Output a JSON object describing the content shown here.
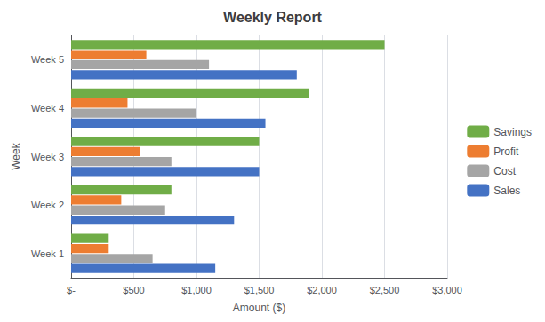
{
  "chart_data": {
    "type": "bar",
    "orientation": "horizontal",
    "title": "Weekly Report",
    "xlabel": "Amount ($)",
    "ylabel": "Week",
    "categories": [
      "Week 1",
      "Week 2",
      "Week 3",
      "Week 4",
      "Week 5"
    ],
    "series": [
      {
        "name": "Savings",
        "color": "#70AD47",
        "values": [
          300,
          800,
          1500,
          1900,
          2500
        ]
      },
      {
        "name": "Profit",
        "color": "#ED7D31",
        "values": [
          300,
          400,
          550,
          450,
          600
        ]
      },
      {
        "name": "Cost",
        "color": "#A5A5A5",
        "values": [
          650,
          750,
          800,
          1000,
          1100
        ]
      },
      {
        "name": "Sales",
        "color": "#4472C4",
        "values": [
          1150,
          1300,
          1500,
          1550,
          1800
        ]
      }
    ],
    "xlim": [
      0,
      3000
    ],
    "xticks": [
      {
        "value": 0,
        "label": "$-"
      },
      {
        "value": 500,
        "label": "$500"
      },
      {
        "value": 1000,
        "label": "$1,000"
      },
      {
        "value": 1500,
        "label": "$1,500"
      },
      {
        "value": 2000,
        "label": "$2,000"
      },
      {
        "value": 2500,
        "label": "$2,500"
      },
      {
        "value": 3000,
        "label": "$3,000"
      }
    ],
    "grid": true,
    "legend": "right"
  }
}
